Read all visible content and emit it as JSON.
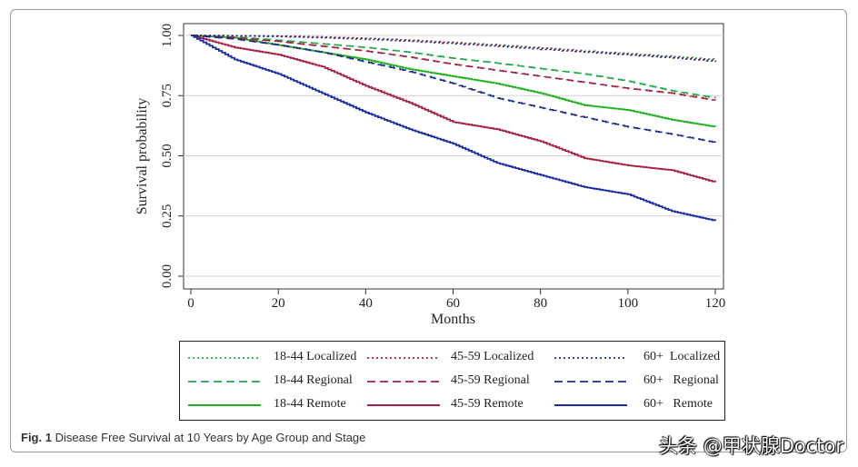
{
  "caption": {
    "label": "Fig. 1",
    "text": " Disease Free Survival at 10 Years by Age Group and Stage"
  },
  "watermark": "头条 @甲状腺Doctor",
  "chart_data": {
    "type": "line",
    "xlabel": "Months",
    "ylabel": "Survival probability",
    "xlim": [
      0,
      120
    ],
    "ylim": [
      0,
      1
    ],
    "xticks": [
      "0",
      "20",
      "40",
      "60",
      "80",
      "100",
      "120"
    ],
    "yticks": [
      "0.00",
      "0.25",
      "0.50",
      "0.75",
      "1.00"
    ],
    "grid": "horizontal",
    "legend_position": "bottom",
    "series": [
      {
        "name": "18-44 Localized",
        "color": "#22a845",
        "dash": "dotted",
        "x": [
          0,
          10,
          20,
          30,
          40,
          50,
          60,
          70,
          80,
          90,
          100,
          110,
          120
        ],
        "y": [
          1.0,
          0.999,
          0.997,
          0.993,
          0.988,
          0.98,
          0.97,
          0.96,
          0.948,
          0.935,
          0.924,
          0.912,
          0.9
        ]
      },
      {
        "name": "18-44 Regional",
        "color": "#22a845",
        "dash": "dashed",
        "x": [
          0,
          10,
          20,
          30,
          40,
          50,
          60,
          70,
          80,
          90,
          100,
          110,
          120
        ],
        "y": [
          1.0,
          0.993,
          0.98,
          0.965,
          0.95,
          0.93,
          0.905,
          0.885,
          0.862,
          0.84,
          0.81,
          0.77,
          0.74
        ]
      },
      {
        "name": "18-44 Remote",
        "color": "#22b022",
        "dash": "solid",
        "x": [
          0,
          10,
          20,
          30,
          40,
          50,
          60,
          70,
          80,
          90,
          100,
          110,
          120
        ],
        "y": [
          1.0,
          0.99,
          0.96,
          0.93,
          0.9,
          0.86,
          0.83,
          0.8,
          0.76,
          0.71,
          0.69,
          0.65,
          0.62
        ]
      },
      {
        "name": "45-59 Localized",
        "color": "#a02040",
        "dash": "dotted",
        "x": [
          0,
          10,
          20,
          30,
          40,
          50,
          60,
          70,
          80,
          90,
          100,
          110,
          120
        ],
        "y": [
          1.0,
          0.999,
          0.997,
          0.993,
          0.987,
          0.979,
          0.969,
          0.958,
          0.946,
          0.933,
          0.921,
          0.909,
          0.895
        ]
      },
      {
        "name": "45-59 Regional",
        "color": "#a02040",
        "dash": "dashed",
        "x": [
          0,
          10,
          20,
          30,
          40,
          50,
          60,
          70,
          80,
          90,
          100,
          110,
          120
        ],
        "y": [
          1.0,
          0.99,
          0.975,
          0.955,
          0.935,
          0.91,
          0.88,
          0.855,
          0.83,
          0.805,
          0.78,
          0.76,
          0.73
        ]
      },
      {
        "name": "45-59 Remote",
        "color": "#a52042",
        "dash": "solid",
        "x": [
          0,
          10,
          20,
          30,
          40,
          50,
          60,
          70,
          80,
          90,
          100,
          110,
          120
        ],
        "y": [
          1.0,
          0.95,
          0.92,
          0.87,
          0.79,
          0.72,
          0.64,
          0.61,
          0.56,
          0.49,
          0.46,
          0.44,
          0.39
        ]
      },
      {
        "name": "60+  Localized",
        "color": "#1f2a8a",
        "dash": "dotted",
        "x": [
          0,
          10,
          20,
          30,
          40,
          50,
          60,
          70,
          80,
          90,
          100,
          110,
          120
        ],
        "y": [
          1.0,
          0.998,
          0.995,
          0.99,
          0.983,
          0.975,
          0.965,
          0.954,
          0.942,
          0.93,
          0.918,
          0.906,
          0.89
        ]
      },
      {
        "name": "60+   Regional",
        "color": "#1f2a8a",
        "dash": "dashed",
        "x": [
          0,
          10,
          20,
          30,
          40,
          50,
          60,
          70,
          80,
          90,
          100,
          110,
          120
        ],
        "y": [
          1.0,
          0.985,
          0.96,
          0.93,
          0.89,
          0.85,
          0.8,
          0.74,
          0.7,
          0.66,
          0.62,
          0.59,
          0.555
        ]
      },
      {
        "name": "60+   Remote",
        "color": "#1a2aa0",
        "dash": "solid",
        "x": [
          0,
          10,
          20,
          30,
          40,
          50,
          60,
          70,
          80,
          90,
          100,
          110,
          120
        ],
        "y": [
          1.0,
          0.9,
          0.84,
          0.76,
          0.68,
          0.61,
          0.55,
          0.47,
          0.42,
          0.37,
          0.34,
          0.27,
          0.23
        ]
      }
    ]
  }
}
